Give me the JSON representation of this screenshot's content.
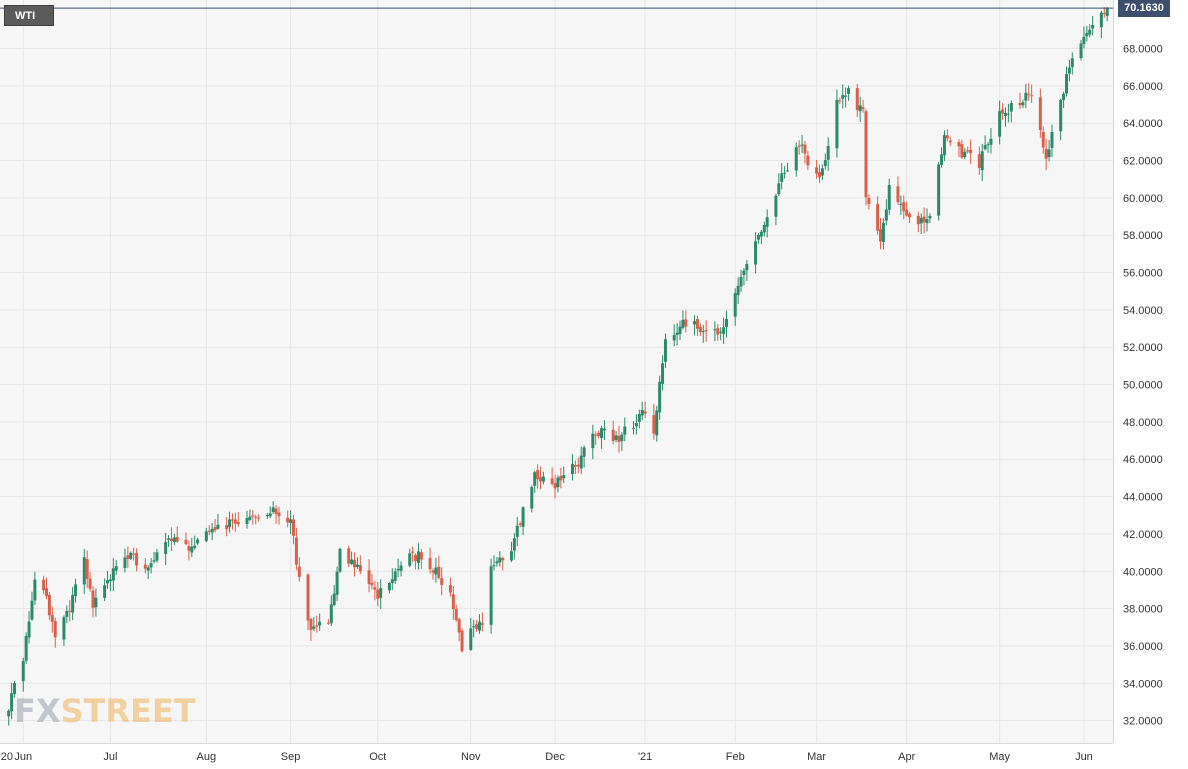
{
  "symbol": "WTI",
  "last_price_label": "70.1630",
  "watermark": {
    "prefix": "FX",
    "suffix": "STREET"
  },
  "colors": {
    "up": "#2a8a6a",
    "down": "#d9604a",
    "grid": "#e6e6e6",
    "background": "#f6f6f6",
    "price_line": "#3d4f6f"
  },
  "chart_data": {
    "type": "candlestick",
    "ylim": [
      30.8,
      70.6
    ],
    "y_ticks": [
      "32.0000",
      "34.0000",
      "36.0000",
      "38.0000",
      "40.0000",
      "42.0000",
      "44.0000",
      "46.0000",
      "48.0000",
      "50.0000",
      "52.0000",
      "54.0000",
      "56.0000",
      "58.0000",
      "60.0000",
      "62.0000",
      "64.0000",
      "66.0000",
      "68.0000"
    ],
    "x_tick_labels": [
      "'20",
      "Jun",
      "Jul",
      "Aug",
      "Sep",
      "Oct",
      "Nov",
      "Dec",
      "'21",
      "Feb",
      "Mar",
      "Apr",
      "May",
      "Jun"
    ],
    "last_price": 70.163,
    "anchors": [
      [
        "2020-05-27",
        32.8
      ],
      [
        "2020-06-01",
        35.4
      ],
      [
        "2020-06-05",
        39.5
      ],
      [
        "2020-06-09",
        38.5
      ],
      [
        "2020-06-12",
        36.3
      ],
      [
        "2020-06-17",
        38.0
      ],
      [
        "2020-06-22",
        40.7
      ],
      [
        "2020-06-25",
        38.2
      ],
      [
        "2020-07-01",
        39.8
      ],
      [
        "2020-07-08",
        40.8
      ],
      [
        "2020-07-14",
        40.2
      ],
      [
        "2020-07-21",
        41.9
      ],
      [
        "2020-07-29",
        41.2
      ],
      [
        "2020-08-05",
        42.2
      ],
      [
        "2020-08-12",
        42.6
      ],
      [
        "2020-08-19",
        42.9
      ],
      [
        "2020-08-26",
        43.4
      ],
      [
        "2020-09-01",
        42.8
      ],
      [
        "2020-09-04",
        39.5
      ],
      [
        "2020-09-08",
        36.8
      ],
      [
        "2020-09-14",
        37.2
      ],
      [
        "2020-09-18",
        40.9
      ],
      [
        "2020-09-24",
        40.1
      ],
      [
        "2020-10-01",
        38.7
      ],
      [
        "2020-10-05",
        39.2
      ],
      [
        "2020-10-09",
        40.6
      ],
      [
        "2020-10-16",
        40.8
      ],
      [
        "2020-10-21",
        40.0
      ],
      [
        "2020-10-26",
        38.6
      ],
      [
        "2020-10-30",
        35.8
      ],
      [
        "2020-11-02",
        36.8
      ],
      [
        "2020-11-06",
        37.1
      ],
      [
        "2020-11-09",
        40.3
      ],
      [
        "2020-11-16",
        41.3
      ],
      [
        "2020-11-24",
        45.2
      ],
      [
        "2020-12-01",
        44.7
      ],
      [
        "2020-12-08",
        45.6
      ],
      [
        "2020-12-15",
        47.6
      ],
      [
        "2020-12-22",
        47.0
      ],
      [
        "2020-12-31",
        48.4
      ],
      [
        "2021-01-04",
        47.5
      ],
      [
        "2021-01-08",
        52.2
      ],
      [
        "2021-01-13",
        53.2
      ],
      [
        "2021-01-20",
        53.1
      ],
      [
        "2021-01-27",
        52.6
      ],
      [
        "2021-02-03",
        56.0
      ],
      [
        "2021-02-10",
        58.3
      ],
      [
        "2021-02-17",
        61.1
      ],
      [
        "2021-02-24",
        63.1
      ],
      [
        "2021-02-26",
        61.5
      ],
      [
        "2021-03-03",
        61.3
      ],
      [
        "2021-03-08",
        65.1
      ],
      [
        "2021-03-12",
        65.6
      ],
      [
        "2021-03-17",
        64.5
      ],
      [
        "2021-03-18",
        60.0
      ],
      [
        "2021-03-23",
        57.8
      ],
      [
        "2021-03-26",
        60.6
      ],
      [
        "2021-03-31",
        59.2
      ],
      [
        "2021-04-05",
        58.6
      ],
      [
        "2021-04-09",
        59.3
      ],
      [
        "2021-04-14",
        63.2
      ],
      [
        "2021-04-20",
        62.4
      ],
      [
        "2021-04-26",
        61.9
      ],
      [
        "2021-05-03",
        64.5
      ],
      [
        "2021-05-11",
        65.3
      ],
      [
        "2021-05-14",
        65.4
      ],
      [
        "2021-05-19",
        62.0
      ],
      [
        "2021-05-21",
        63.6
      ],
      [
        "2021-05-27",
        66.9
      ],
      [
        "2021-06-02",
        68.8
      ],
      [
        "2021-06-08",
        70.05
      ],
      [
        "2021-06-09",
        70.163
      ]
    ]
  }
}
